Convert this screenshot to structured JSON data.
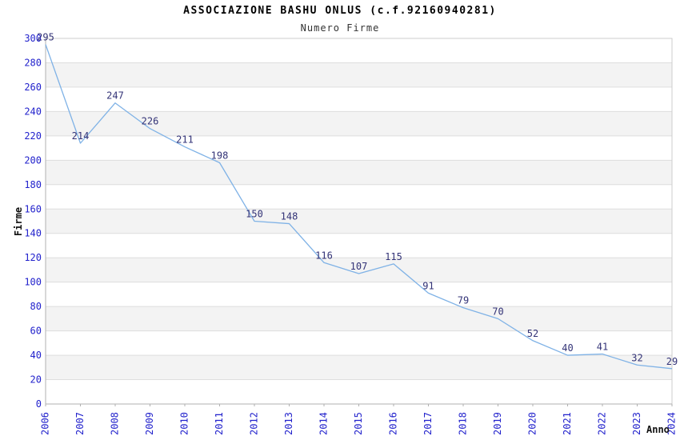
{
  "header": {
    "title": "ASSOCIAZIONE BASHU ONLUS (c.f.92160940281)",
    "subtitle": "Numero Firme"
  },
  "chart_data": {
    "type": "line",
    "title": "ASSOCIAZIONE BASHU ONLUS (c.f.92160940281)",
    "subtitle": "Numero Firme",
    "xlabel": "Anno",
    "ylabel": "Firme",
    "categories": [
      "2006",
      "2007",
      "2008",
      "2009",
      "2010",
      "2011",
      "2012",
      "2013",
      "2014",
      "2015",
      "2016",
      "2017",
      "2018",
      "2019",
      "2020",
      "2021",
      "2022",
      "2023",
      "2024"
    ],
    "series": [
      {
        "name": "Numero Firme",
        "values": [
          295,
          214,
          247,
          226,
          211,
          198,
          150,
          148,
          116,
          107,
          115,
          91,
          79,
          70,
          52,
          40,
          41,
          32,
          29
        ]
      }
    ],
    "ylim": [
      0,
      300
    ],
    "ytick_step": 20,
    "grid": "horizontal",
    "background_bands": "alternating every 20 units, white / light gray",
    "legend": "none",
    "point_labels_visible": true,
    "x_tick_labels_rotated_degrees": -90,
    "colors": {
      "line": "#7fb2e6",
      "grid": "#dedede",
      "band": "#f3f3f3",
      "frame": "#cccccc",
      "axis": "#b0b0b0",
      "tick_label": "#2222cc",
      "value_label": "#333377",
      "title": "#000000",
      "subtitle": "#333333"
    }
  }
}
